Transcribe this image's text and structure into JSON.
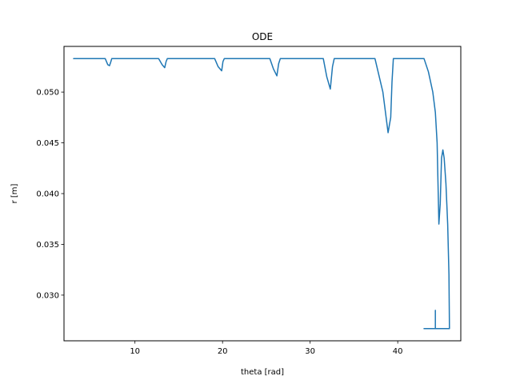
{
  "chart_data": {
    "type": "line",
    "title": "ODE",
    "xlabel": "theta [rad]",
    "ylabel": "r [m]",
    "xlim": [
      1.9,
      47.2
    ],
    "ylim": [
      0.0255,
      0.0545
    ],
    "xticks": [
      10,
      20,
      30,
      40
    ],
    "xtick_labels": [
      "10",
      "20",
      "30",
      "40"
    ],
    "yticks": [
      0.03,
      0.035,
      0.04,
      0.045,
      0.05
    ],
    "ytick_labels": [
      "0.030",
      "0.035",
      "0.040",
      "0.045",
      "0.050"
    ],
    "grid": false,
    "legend": "none",
    "series": [
      {
        "color": "#1f77b4",
        "x": [
          3.0,
          6.6,
          6.9,
          7.1,
          7.25,
          7.35,
          12.7,
          13.1,
          13.4,
          13.55,
          13.7,
          19.1,
          19.5,
          19.9,
          20.05,
          20.2,
          25.4,
          25.8,
          26.2,
          26.4,
          26.6,
          31.5,
          31.9,
          32.3,
          32.55,
          32.75,
          37.4,
          38.3,
          38.9,
          39.2,
          39.35,
          39.5,
          42.5,
          43.0,
          43.5,
          44.0,
          44.3,
          44.5,
          44.6,
          44.7,
          44.85,
          45.0,
          45.15,
          45.3,
          45.5,
          45.7,
          45.85,
          45.9,
          45.9,
          44.8,
          43.0,
          43.0,
          44.3,
          44.3
        ],
        "y": [
          0.0533,
          0.0533,
          0.0527,
          0.0526,
          0.053,
          0.0533,
          0.0533,
          0.0527,
          0.0524,
          0.053,
          0.0533,
          0.0533,
          0.0525,
          0.0521,
          0.053,
          0.0533,
          0.0533,
          0.0523,
          0.0516,
          0.0528,
          0.0533,
          0.0533,
          0.0515,
          0.0503,
          0.0525,
          0.0533,
          0.0533,
          0.05,
          0.046,
          0.0475,
          0.051,
          0.0533,
          0.0533,
          0.0533,
          0.052,
          0.05,
          0.048,
          0.045,
          0.041,
          0.037,
          0.039,
          0.0435,
          0.0443,
          0.0435,
          0.041,
          0.037,
          0.032,
          0.0268,
          0.0267,
          0.0267,
          0.0267,
          0.0267,
          0.0267,
          0.0285
        ]
      }
    ]
  }
}
